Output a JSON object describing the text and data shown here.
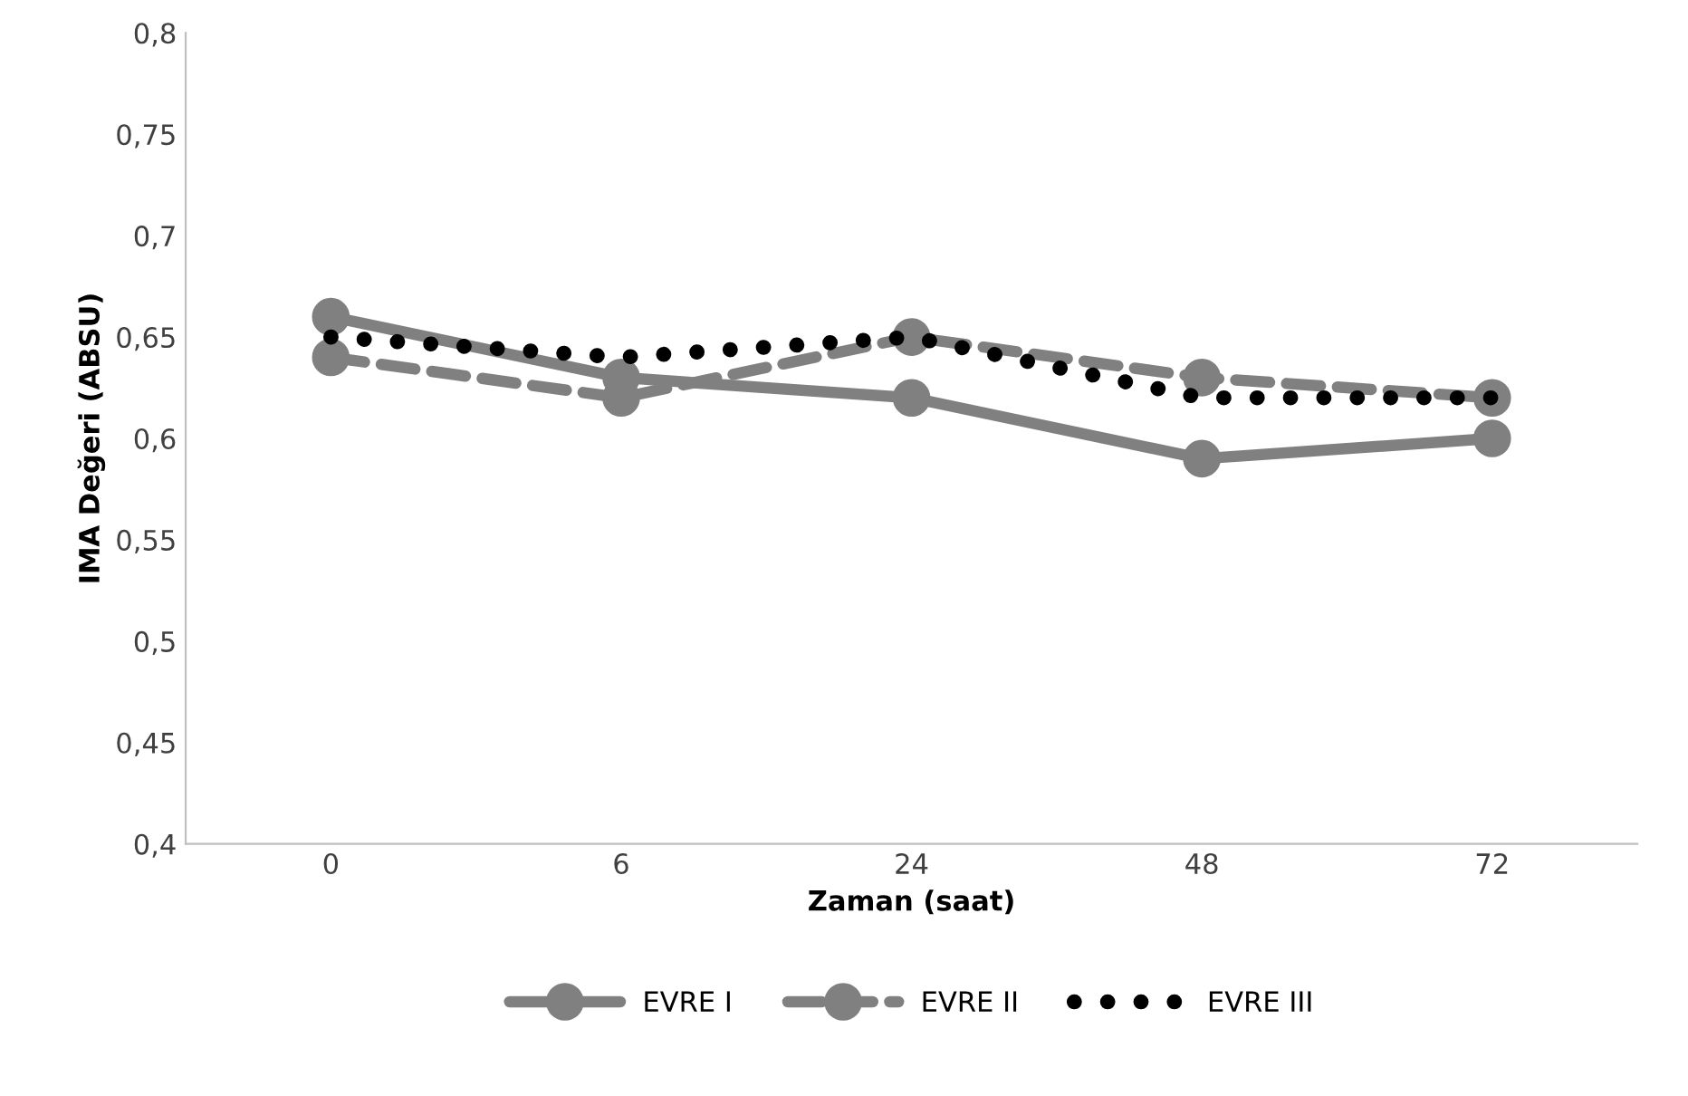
{
  "chart_data": {
    "type": "line",
    "xlabel": "Zaman (saat)",
    "ylabel": "IMA Değeri (ABSU)",
    "categories": [
      "0",
      "6",
      "24",
      "48",
      "72"
    ],
    "series": [
      {
        "name": "EVRE I",
        "color": "#808080",
        "values": [
          0.66,
          0.63,
          0.62,
          0.59,
          0.6
        ],
        "marker": "circle",
        "line_style": "solid"
      },
      {
        "name": "EVRE II",
        "color": "#808080",
        "values": [
          0.64,
          0.62,
          0.65,
          0.63,
          0.62
        ],
        "marker": "circle",
        "line_style": "dashed"
      },
      {
        "name": "EVRE III",
        "color": "#000000",
        "values": [
          0.65,
          0.64,
          0.65,
          0.62,
          0.62
        ],
        "marker": "none",
        "line_style": "dotted"
      }
    ],
    "ylim": [
      0.4,
      0.8
    ],
    "yticks": [
      {
        "value": 0.4,
        "label": "0,4"
      },
      {
        "value": 0.45,
        "label": "0,45"
      },
      {
        "value": 0.5,
        "label": "0,5"
      },
      {
        "value": 0.55,
        "label": "0,55"
      },
      {
        "value": 0.6,
        "label": "0,6"
      },
      {
        "value": 0.65,
        "label": "0,65"
      },
      {
        "value": 0.7,
        "label": "0,7"
      },
      {
        "value": 0.75,
        "label": "0,75"
      },
      {
        "value": 0.8,
        "label": "0,8"
      }
    ],
    "grid": false,
    "legend": "bottom"
  }
}
